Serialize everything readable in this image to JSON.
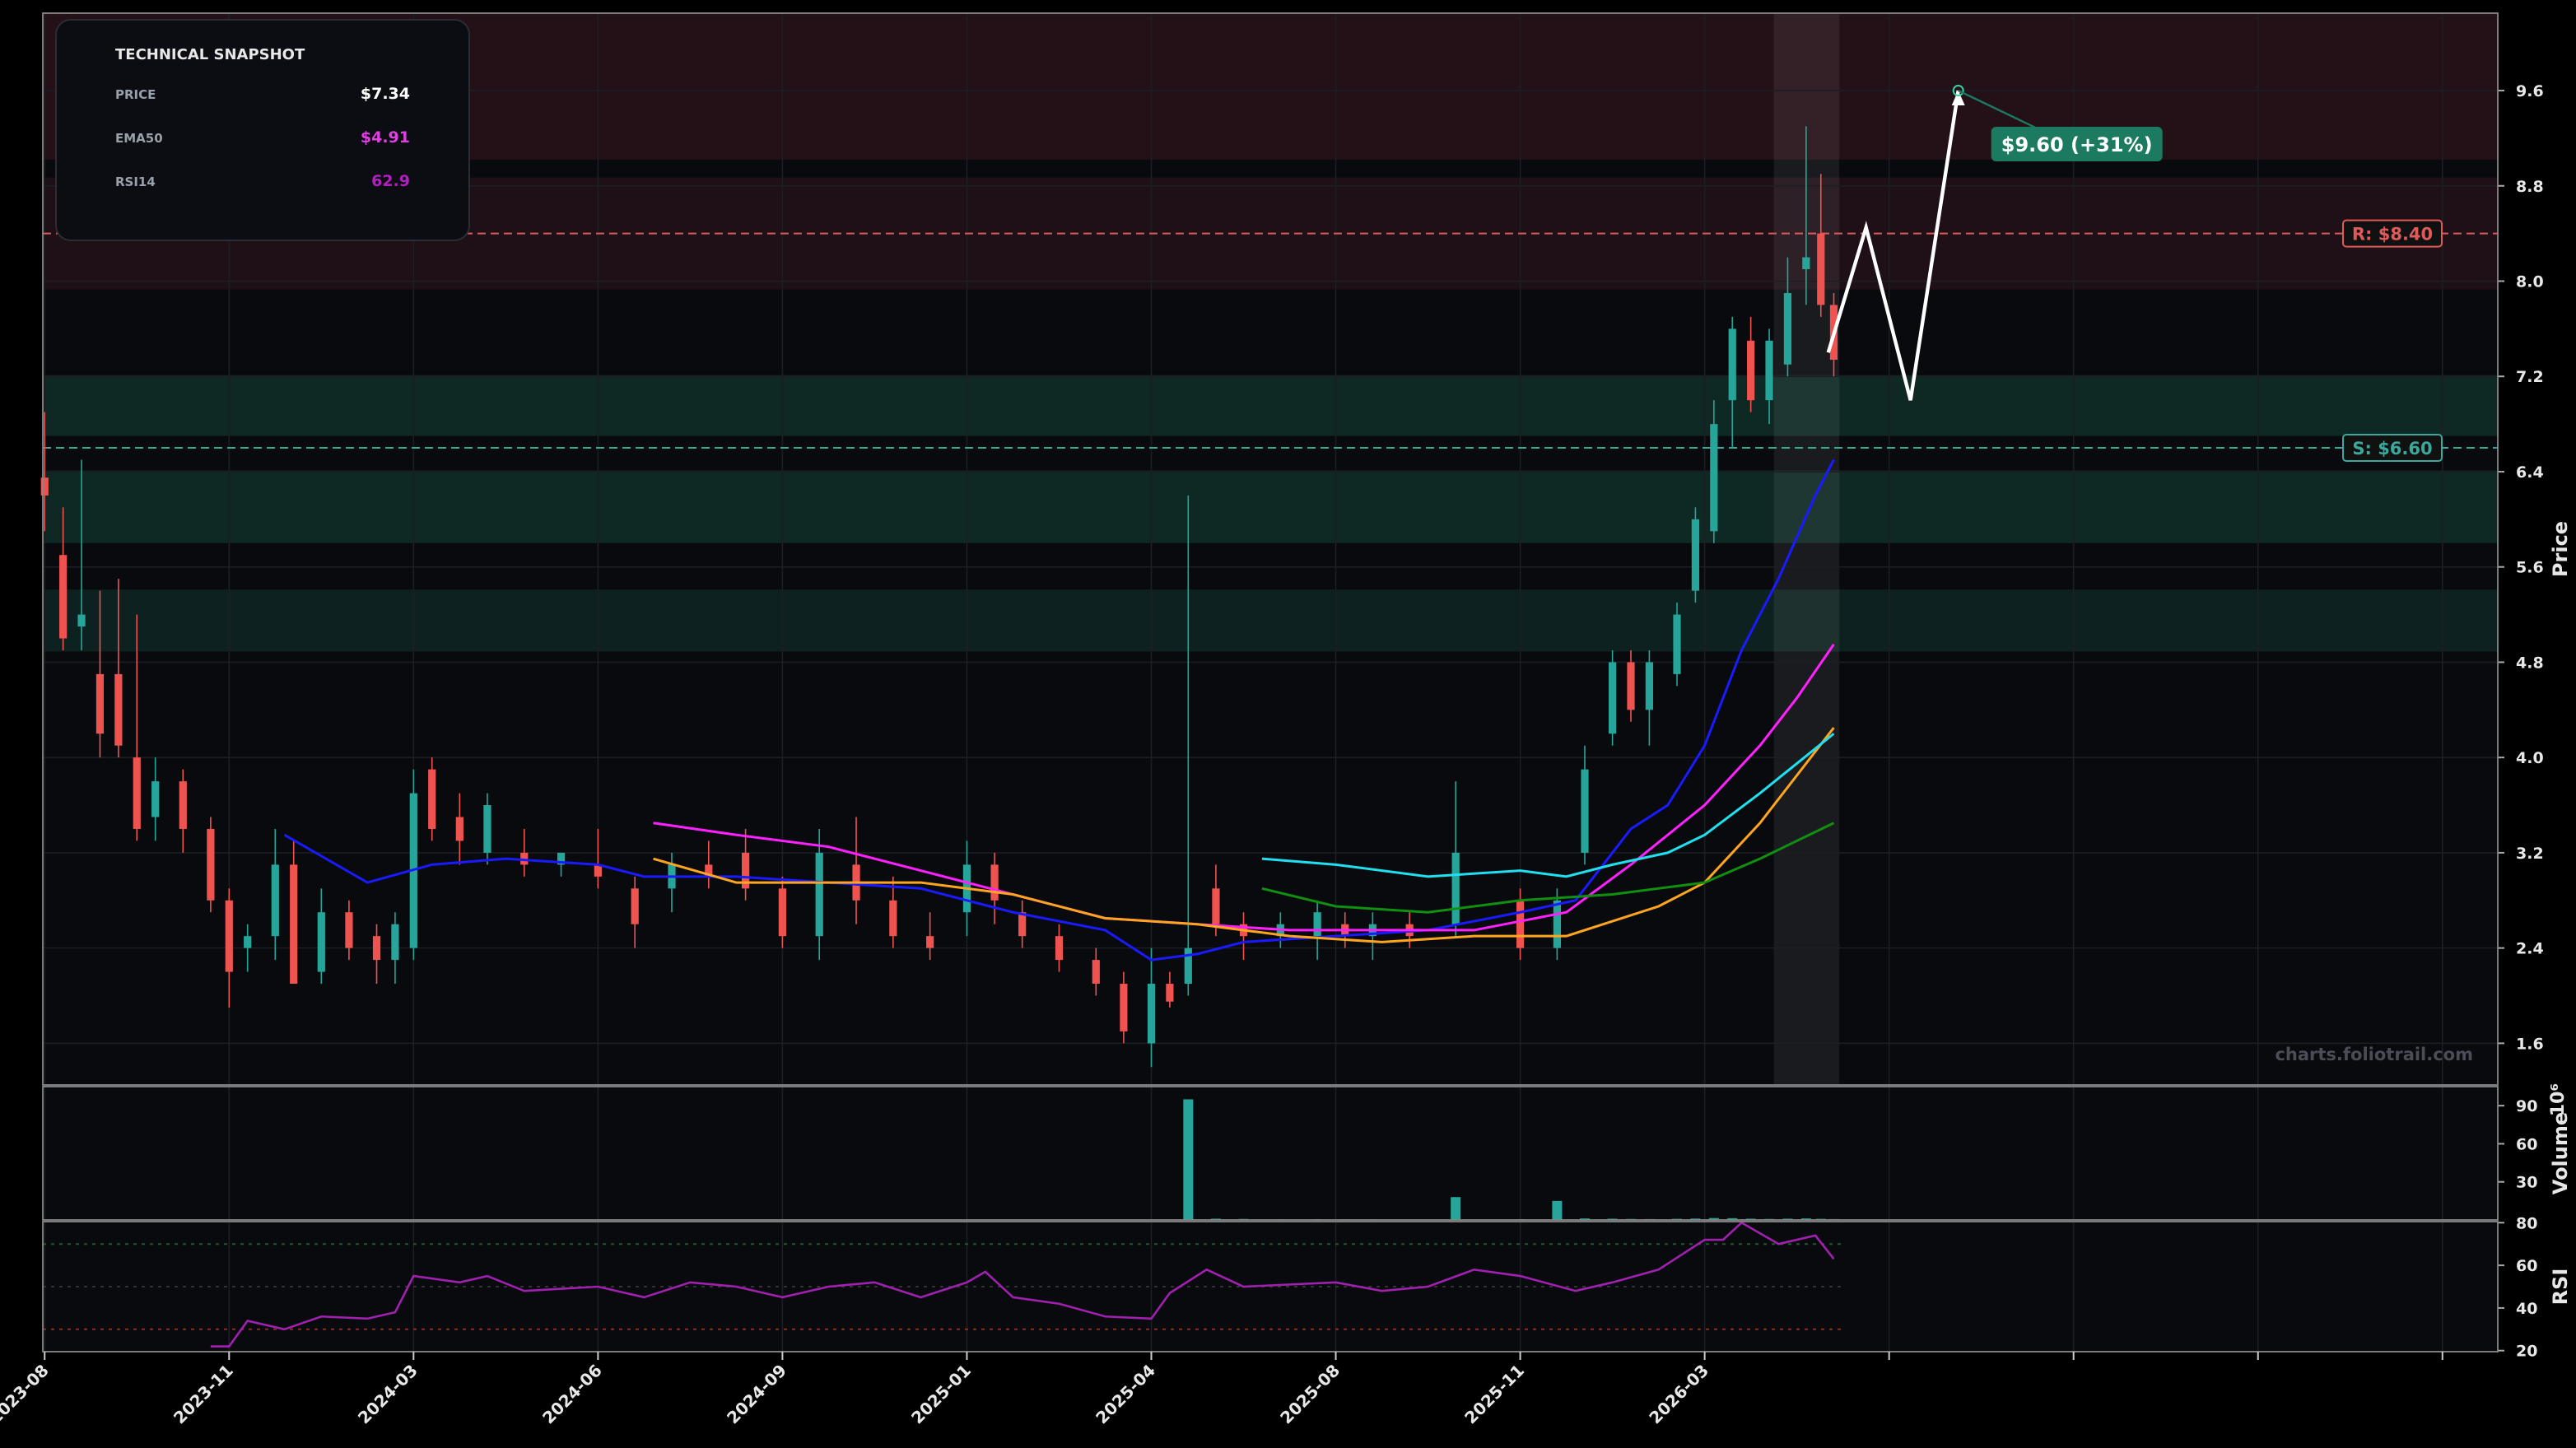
{
  "snapshot": {
    "title": "TECHNICAL SNAPSHOT",
    "rows": [
      {
        "label": "PRICE",
        "value": "$7.34",
        "color": "#ffffff"
      },
      {
        "label": "EMA50",
        "value": "$4.91",
        "color": "#e040e0"
      },
      {
        "label": "RSI14",
        "value": "62.9",
        "color": "#b020c0"
      }
    ]
  },
  "chart_data": [
    {
      "type": "candlestick",
      "ylabel": "Price",
      "watermark": "charts.foliotrail.com",
      "grid": true,
      "up_color": "#26a69a",
      "down_color": "#ef5350",
      "x": [
        0.0,
        0.1,
        0.2,
        0.3,
        0.4,
        0.5,
        0.6,
        0.75,
        0.9,
        1.0,
        1.1,
        1.25,
        1.35,
        1.5,
        1.65,
        1.8,
        1.9,
        2.0,
        2.1,
        2.25,
        2.4,
        2.6,
        2.8,
        3.0,
        3.2,
        3.4,
        3.6,
        3.8,
        4.0,
        4.2,
        4.4,
        4.6,
        4.8,
        5.0,
        5.15,
        5.3,
        5.5,
        5.7,
        5.85,
        6.0,
        6.1,
        6.2,
        6.35,
        6.5,
        6.7,
        6.9,
        7.05,
        7.2,
        7.4,
        7.65,
        8.0,
        8.2,
        8.35,
        8.5,
        8.6,
        8.7,
        8.85,
        8.95,
        9.05,
        9.15,
        9.25,
        9.35,
        9.45,
        9.55,
        9.63,
        9.7
      ],
      "open": [
        6.35,
        5.7,
        5.1,
        4.7,
        4.7,
        4.0,
        3.5,
        3.8,
        3.4,
        2.8,
        2.4,
        2.5,
        3.1,
        2.2,
        2.7,
        2.5,
        2.3,
        2.4,
        3.9,
        3.5,
        3.2,
        3.2,
        3.1,
        3.1,
        2.9,
        2.9,
        3.1,
        3.2,
        2.9,
        2.5,
        3.1,
        2.8,
        2.5,
        2.7,
        3.1,
        2.7,
        2.5,
        2.3,
        2.1,
        1.6,
        2.1,
        2.1,
        2.9,
        2.6,
        2.5,
        2.5,
        2.6,
        2.5,
        2.6,
        2.6,
        2.8,
        2.4,
        3.2,
        4.2,
        4.8,
        4.4,
        4.7,
        5.4,
        5.9,
        7.0,
        7.5,
        7.0,
        7.3,
        8.1,
        8.4,
        7.8
      ],
      "high": [
        6.9,
        6.1,
        6.5,
        5.4,
        5.5,
        5.2,
        4.0,
        3.9,
        3.5,
        2.9,
        2.6,
        3.4,
        3.3,
        2.9,
        2.8,
        2.6,
        2.7,
        3.9,
        4.0,
        3.7,
        3.7,
        3.4,
        3.2,
        3.4,
        3.0,
        3.2,
        3.3,
        3.4,
        3.0,
        3.4,
        3.5,
        3.0,
        2.7,
        3.3,
        3.2,
        2.8,
        2.6,
        2.4,
        2.2,
        2.4,
        2.2,
        6.2,
        3.1,
        2.7,
        2.7,
        2.8,
        2.7,
        2.7,
        2.7,
        3.8,
        2.9,
        2.9,
        4.1,
        4.9,
        4.9,
        4.9,
        5.3,
        6.1,
        7.0,
        7.7,
        7.7,
        7.6,
        8.2,
        9.3,
        8.9,
        7.9
      ],
      "low": [
        5.9,
        4.9,
        4.9,
        4.0,
        4.0,
        3.3,
        3.3,
        3.2,
        2.7,
        1.9,
        2.2,
        2.3,
        2.1,
        2.1,
        2.3,
        2.1,
        2.1,
        2.3,
        3.3,
        3.1,
        3.1,
        3.0,
        3.0,
        2.9,
        2.4,
        2.7,
        2.9,
        2.8,
        2.4,
        2.3,
        2.6,
        2.4,
        2.3,
        2.5,
        2.6,
        2.4,
        2.2,
        2.0,
        1.6,
        1.4,
        1.9,
        2.0,
        2.5,
        2.3,
        2.4,
        2.3,
        2.4,
        2.3,
        2.4,
        2.5,
        2.3,
        2.3,
        3.1,
        4.1,
        4.3,
        4.1,
        4.6,
        5.3,
        5.8,
        6.6,
        6.9,
        6.8,
        7.2,
        7.8,
        7.7,
        7.2
      ],
      "close": [
        6.2,
        5.0,
        5.2,
        4.2,
        4.1,
        3.4,
        3.8,
        3.4,
        2.8,
        2.2,
        2.5,
        3.1,
        2.1,
        2.7,
        2.4,
        2.3,
        2.6,
        3.7,
        3.4,
        3.3,
        3.6,
        3.1,
        3.2,
        3.0,
        2.6,
        3.1,
        3.0,
        2.9,
        2.5,
        3.2,
        2.8,
        2.5,
        2.4,
        3.1,
        2.8,
        2.5,
        2.3,
        2.1,
        1.7,
        2.1,
        1.95,
        2.4,
        2.6,
        2.5,
        2.6,
        2.7,
        2.5,
        2.6,
        2.5,
        3.2,
        2.4,
        2.8,
        3.9,
        4.8,
        4.4,
        4.8,
        5.2,
        6.0,
        6.8,
        7.6,
        7.0,
        7.5,
        7.9,
        8.2,
        7.8,
        7.34
      ],
      "xlim": [
        -0.01,
        13.3
      ],
      "xticks": [
        {
          "value": 0,
          "label": "2023-08"
        },
        {
          "value": 1,
          "label": "2023-11"
        },
        {
          "value": 2,
          "label": "2024-03"
        },
        {
          "value": 3,
          "label": "2024-06"
        },
        {
          "value": 4,
          "label": "2024-09"
        },
        {
          "value": 5,
          "label": "2025-01"
        },
        {
          "value": 6,
          "label": "2025-04"
        },
        {
          "value": 7,
          "label": "2025-08"
        },
        {
          "value": 8,
          "label": "2025-11"
        },
        {
          "value": 9,
          "label": "2026-03"
        },
        {
          "value": 10,
          "label": null
        },
        {
          "value": 11,
          "label": null
        },
        {
          "value": 12,
          "label": null
        },
        {
          "value": 13,
          "label": null
        }
      ],
      "ylim": [
        1.25,
        10.25
      ],
      "yticks": [
        1.6,
        2.4,
        3.2,
        {
          "value": 4,
          "label": "4.0"
        },
        4.8,
        5.6,
        6.4,
        7.2,
        {
          "value": 8,
          "label": "8.0"
        },
        8.8,
        9.6
      ],
      "zones": [
        {
          "from": 9.02,
          "to": 10.25,
          "color": "rgba(130,45,60,0.22)"
        },
        {
          "from": 7.93,
          "to": 8.87,
          "color": "rgba(130,45,60,0.18)"
        },
        {
          "from": 6.7,
          "to": 7.21,
          "color": "rgba(30,130,105,0.25)"
        },
        {
          "from": 5.8,
          "to": 6.41,
          "color": "rgba(30,130,105,0.25)"
        },
        {
          "from": 4.89,
          "to": 5.41,
          "color": "rgba(30,130,105,0.20)"
        }
      ],
      "highlight": [
        9.375,
        9.73
      ],
      "levels": [
        {
          "value": 8.4,
          "label": "R: $8.40",
          "color": "#e05a5a"
        },
        {
          "value": 6.6,
          "label": "S: $6.60",
          "color": "#3aa89a"
        }
      ],
      "lines": [
        {
          "color": "#1a1aff",
          "x": [
            1.3,
            1.75,
            2.1,
            2.5,
            3.0,
            3.25,
            3.75,
            4.25,
            4.75,
            5.25,
            5.75,
            6.0,
            6.25,
            6.5,
            7.0,
            7.5,
            8.0,
            8.3,
            8.6,
            8.8,
            9.0,
            9.2,
            9.4,
            9.6,
            9.7
          ],
          "values": [
            3.35,
            2.95,
            3.1,
            3.15,
            3.1,
            3.0,
            3.0,
            2.95,
            2.9,
            2.7,
            2.55,
            2.3,
            2.35,
            2.45,
            2.5,
            2.55,
            2.7,
            2.8,
            3.4,
            3.6,
            4.1,
            4.9,
            5.5,
            6.2,
            6.5
          ]
        },
        {
          "color": "#ff20ff",
          "x": [
            3.3,
            3.75,
            4.25,
            4.75,
            5.25,
            5.75,
            6.25,
            6.75,
            7.25,
            7.75,
            8.25,
            8.6,
            9.0,
            9.3,
            9.5,
            9.7
          ],
          "values": [
            3.45,
            3.35,
            3.25,
            3.05,
            2.85,
            2.65,
            2.6,
            2.55,
            2.55,
            2.55,
            2.7,
            3.1,
            3.6,
            4.1,
            4.5,
            4.95
          ]
        },
        {
          "color": "#ffa520",
          "x": [
            3.3,
            3.75,
            4.25,
            4.75,
            5.25,
            5.75,
            6.25,
            6.75,
            7.25,
            7.75,
            8.25,
            8.75,
            9.0,
            9.3,
            9.5,
            9.7
          ],
          "values": [
            3.15,
            2.95,
            2.95,
            2.95,
            2.85,
            2.65,
            2.6,
            2.5,
            2.45,
            2.5,
            2.5,
            2.75,
            2.95,
            3.45,
            3.85,
            4.25
          ]
        },
        {
          "color": "#20e0f0",
          "x": [
            6.6,
            7.0,
            7.5,
            8.0,
            8.25,
            8.5,
            8.8,
            9.0,
            9.3,
            9.5,
            9.7
          ],
          "values": [
            3.15,
            3.1,
            3.0,
            3.05,
            3.0,
            3.1,
            3.2,
            3.35,
            3.7,
            3.95,
            4.2
          ]
        },
        {
          "color": "#109010",
          "x": [
            6.6,
            7.0,
            7.5,
            8.0,
            8.5,
            9.0,
            9.3,
            9.7
          ],
          "values": [
            2.9,
            2.75,
            2.7,
            2.8,
            2.85,
            2.95,
            3.15,
            3.45
          ]
        }
      ],
      "forecast": {
        "color": "#ffffff",
        "label": "$9.60 (+31%)",
        "label_color": "#1b7a5f",
        "x": [
          9.67,
          9.875,
          10.116,
          10.375
        ],
        "values": [
          7.4,
          8.45,
          7.0,
          9.6
        ]
      }
    },
    {
      "type": "bar",
      "ylabel": "Volume",
      "scale_label": "10⁶",
      "color": "#26a69a",
      "x": [
        6.2,
        6.35,
        6.5,
        6.7,
        6.9,
        7.05,
        7.2,
        7.4,
        7.65,
        8.0,
        8.2,
        8.35,
        8.5,
        8.6,
        8.7,
        8.85,
        8.95,
        9.05,
        9.15,
        9.25,
        9.35,
        9.45,
        9.55,
        9.63,
        9.7
      ],
      "values": [
        95,
        1,
        0.8,
        0.5,
        0.6,
        0.5,
        0.5,
        0.4,
        18,
        0.6,
        15,
        1.2,
        1,
        0.8,
        0.7,
        0.9,
        1.1,
        1.5,
        1.4,
        1,
        0.8,
        1,
        1.2,
        0.9,
        0.7
      ],
      "ylim": [
        0,
        105
      ],
      "yticks": [
        30,
        60,
        90
      ]
    },
    {
      "type": "line",
      "ylabel": "RSI",
      "color": "#a020b0",
      "x": [
        0.9,
        1.0,
        1.1,
        1.3,
        1.5,
        1.75,
        1.9,
        2.0,
        2.25,
        2.4,
        2.6,
        3.0,
        3.25,
        3.5,
        3.75,
        4.0,
        4.25,
        4.5,
        4.75,
        5.0,
        5.1,
        5.25,
        5.5,
        5.75,
        6.0,
        6.1,
        6.3,
        6.5,
        7.0,
        7.25,
        7.5,
        7.75,
        8.0,
        8.3,
        8.5,
        8.75,
        9.0,
        9.1,
        9.2,
        9.4,
        9.6,
        9.7
      ],
      "values": [
        22,
        22,
        34,
        30,
        36,
        35,
        38,
        55,
        52,
        55,
        48,
        50,
        45,
        52,
        50,
        45,
        50,
        52,
        45,
        52,
        57,
        45,
        42,
        36,
        35,
        47,
        58,
        50,
        52,
        48,
        50,
        58,
        55,
        48,
        52,
        58,
        72,
        72,
        80,
        70,
        74,
        63
      ],
      "levels": [
        {
          "value": 30,
          "color": "#8a2a2a"
        },
        {
          "value": 50,
          "color": "#333333"
        },
        {
          "value": 70,
          "color": "#1f5a2a"
        }
      ],
      "ylim": [
        19.5,
        80.5
      ],
      "yticks": [
        20,
        40,
        60,
        80
      ]
    }
  ]
}
